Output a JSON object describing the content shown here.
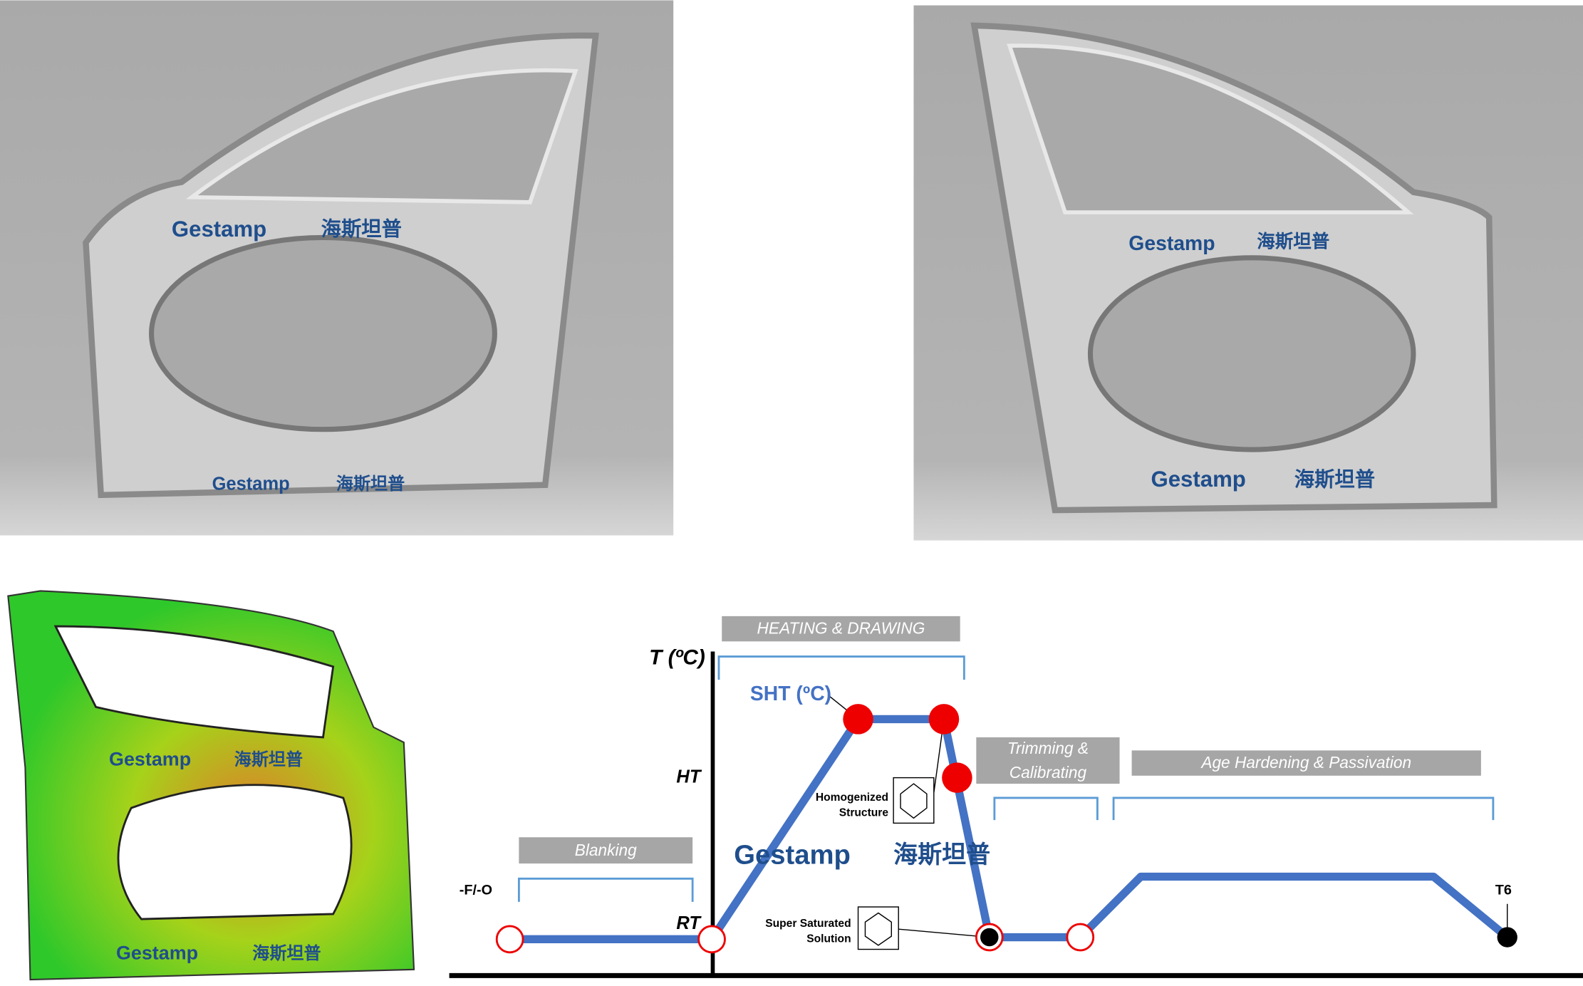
{
  "logo": {
    "name": "Gestamp",
    "local_name": "海斯坦普"
  },
  "diagram": {
    "y_axis_label": "T (ºC)",
    "peak_label": "SHT (ºC)",
    "high_temp_label": "HT",
    "room_temp_label": "RT",
    "start_label": "-F/-O",
    "end_label": "T6",
    "stages": {
      "blanking": "Blanking",
      "heating": "HEATING & DRAWING",
      "trimming": [
        "Trimming &",
        "Calibrating"
      ],
      "aging": "Age Hardening & Passivation"
    },
    "notes": {
      "homogenized": [
        "Homogenized",
        "Structure"
      ],
      "supersaturated": [
        "Super Saturated",
        "Solution"
      ]
    }
  }
}
